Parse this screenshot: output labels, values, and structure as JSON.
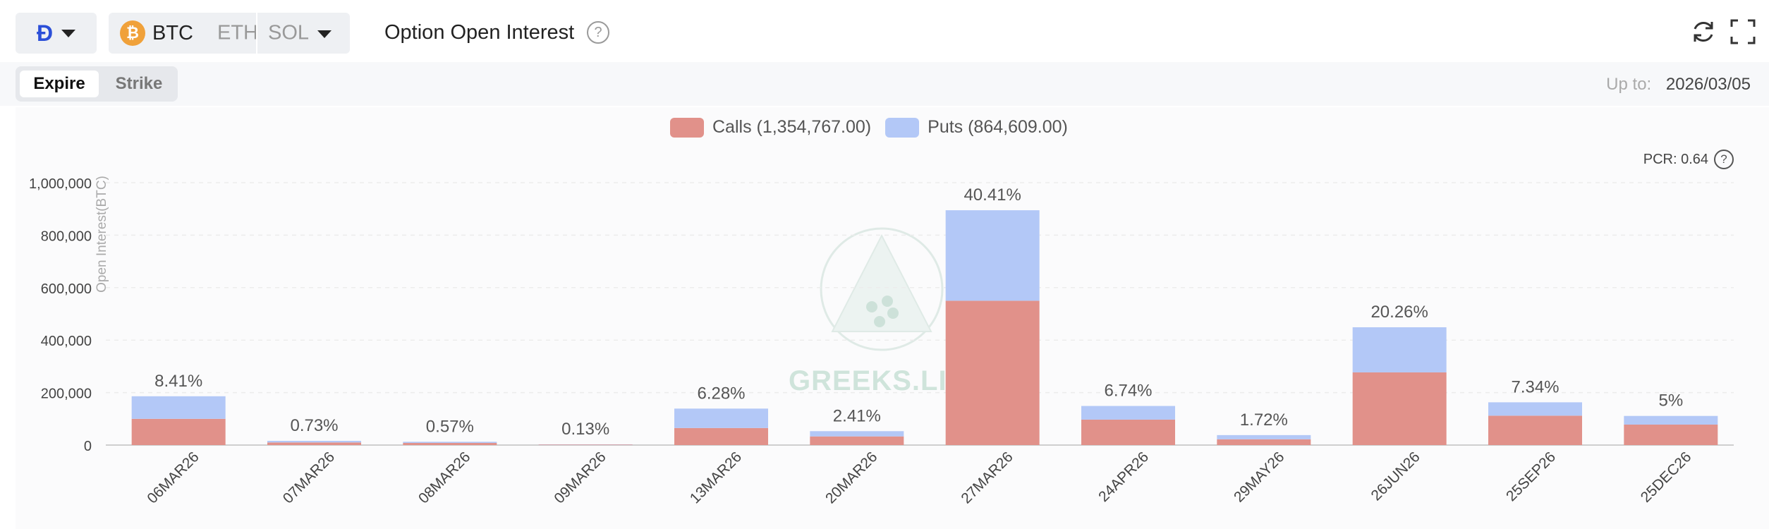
{
  "header": {
    "exchange_icon": "deribit-logo",
    "coins": [
      {
        "label": "BTC",
        "icon": "bitcoin-icon",
        "active": true
      },
      {
        "label": "ETH",
        "active": false
      },
      {
        "label": "SOL",
        "active": false
      }
    ],
    "title": "Option Open Interest",
    "help_icon": "question-circle-icon",
    "actions": [
      "refresh-icon",
      "fullscreen-icon"
    ]
  },
  "tabs": {
    "expire_label": "Expire",
    "strike_label": "Strike",
    "active": "Expire"
  },
  "date_filter": {
    "label": "Up to:",
    "value": "2026/03/05"
  },
  "pcr": {
    "label": "PCR: 0.64"
  },
  "watermark": {
    "text": "GREEKS.LIVE"
  },
  "colors": {
    "calls": "#e1918a",
    "puts": "#b3c8f7"
  },
  "chart_data": {
    "type": "bar",
    "stacked": true,
    "ylabel": "Open Interest(BTC)",
    "ylim": [
      0,
      1000000
    ],
    "yticks": [
      "0",
      "200,000",
      "400,000",
      "600,000",
      "800,000",
      "1,000,000"
    ],
    "grid": true,
    "legend": {
      "position": "top-center"
    },
    "categories": [
      "06MAR26",
      "07MAR26",
      "08MAR26",
      "09MAR26",
      "13MAR26",
      "20MAR26",
      "27MAR26",
      "24APR26",
      "29MAY26",
      "26JUN26",
      "25SEP26",
      "25DEC26"
    ],
    "series": [
      {
        "name": "Calls (1,354,767.00)",
        "values": [
          100000,
          10000,
          8000,
          2000,
          65000,
          33000,
          550000,
          97000,
          22000,
          277000,
          112000,
          78000
        ]
      },
      {
        "name": "Puts (864,609.00)",
        "values": [
          86000,
          6000,
          4500,
          800,
          74000,
          20000,
          345000,
          52000,
          16000,
          172000,
          51000,
          33000
        ]
      }
    ],
    "bar_labels": [
      "8.41%",
      "0.73%",
      "0.57%",
      "0.13%",
      "6.28%",
      "2.41%",
      "40.41%",
      "6.74%",
      "1.72%",
      "20.26%",
      "7.34%",
      "5%"
    ]
  }
}
